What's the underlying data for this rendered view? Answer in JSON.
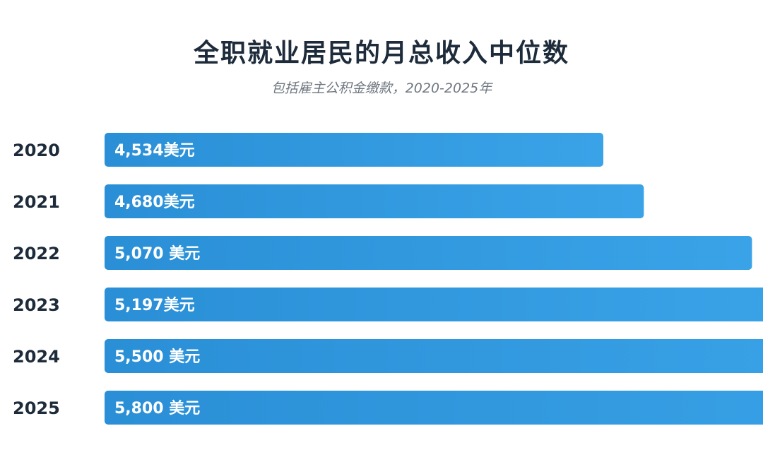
{
  "chart_data": {
    "type": "bar",
    "orientation": "horizontal",
    "title": "全职就业居民的月总收入中位数",
    "subtitle": "包括雇主公积金缴款，2020-2025年",
    "categories": [
      "2020",
      "2021",
      "2022",
      "2023",
      "2024",
      "2025"
    ],
    "values": [
      4534,
      4680,
      5070,
      5197,
      5500,
      5800
    ],
    "data_labels": [
      "4,534美元",
      "4,680美元",
      "5,070 美元",
      "5,197美元",
      "5,500 美元",
      "5,800 美元"
    ],
    "grid": false,
    "legend": "none",
    "bar_color": "#2a8fd6",
    "bar_color_light": "#3aa3e8",
    "text_color": "#1d2b3a"
  }
}
